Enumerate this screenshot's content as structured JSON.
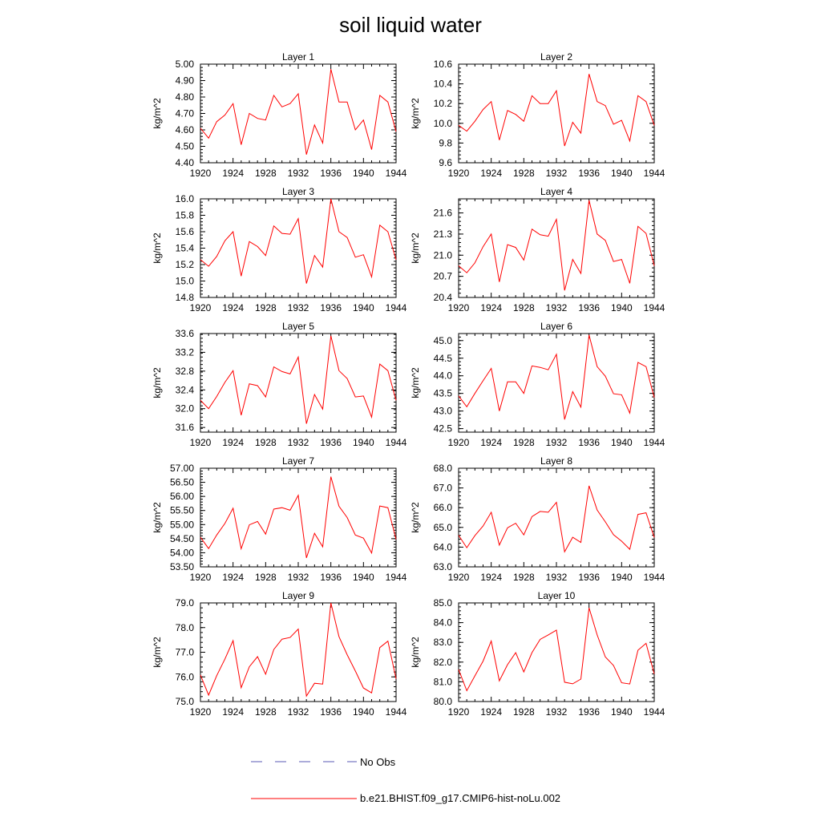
{
  "figure": {
    "title": "soil liquid water",
    "legend": [
      {
        "label": "No Obs",
        "color": "#5a5ab4",
        "style": "dashed"
      },
      {
        "label": "b.e21.BHIST.f09_g17.CMIP6-hist-noLu.002",
        "color": "#ff0000",
        "style": "solid"
      }
    ]
  },
  "chart_data": [
    {
      "type": "line",
      "title": "Layer 1",
      "ylabel": "kg/m^2",
      "x": [
        1920,
        1921,
        1922,
        1923,
        1924,
        1925,
        1926,
        1927,
        1928,
        1929,
        1930,
        1931,
        1932,
        1933,
        1934,
        1935,
        1936,
        1937,
        1938,
        1939,
        1940,
        1941,
        1942,
        1943,
        1944
      ],
      "xticks": [
        "1920",
        "1924",
        "1928",
        "1932",
        "1936",
        "1940",
        "1944"
      ],
      "ylim": [
        4.4,
        5.0
      ],
      "yticks": [
        "4.40",
        "4.50",
        "4.60",
        "4.70",
        "4.80",
        "4.90",
        "5.00"
      ],
      "series": [
        {
          "name": "b.e21.BHIST.f09_g17.CMIP6-hist-noLu.002",
          "color": "#ff0000",
          "values": [
            4.61,
            4.55,
            4.65,
            4.69,
            4.76,
            4.51,
            4.7,
            4.67,
            4.66,
            4.81,
            4.74,
            4.76,
            4.82,
            4.45,
            4.63,
            4.52,
            4.97,
            4.77,
            4.77,
            4.6,
            4.66,
            4.48,
            4.81,
            4.77,
            4.59
          ]
        }
      ]
    },
    {
      "type": "line",
      "title": "Layer 2",
      "ylabel": "kg/m^2",
      "x": [
        1920,
        1921,
        1922,
        1923,
        1924,
        1925,
        1926,
        1927,
        1928,
        1929,
        1930,
        1931,
        1932,
        1933,
        1934,
        1935,
        1936,
        1937,
        1938,
        1939,
        1940,
        1941,
        1942,
        1943,
        1944
      ],
      "xticks": [
        "1920",
        "1924",
        "1928",
        "1932",
        "1936",
        "1940",
        "1944"
      ],
      "ylim": [
        9.6,
        10.6
      ],
      "yticks": [
        "9.6",
        "9.8",
        "10.0",
        "10.2",
        "10.4",
        "10.6"
      ],
      "series": [
        {
          "name": "b.e21.BHIST.f09_g17.CMIP6-hist-noLu.002",
          "color": "#ff0000",
          "values": [
            9.98,
            9.92,
            10.02,
            10.14,
            10.22,
            9.83,
            10.13,
            10.09,
            10.02,
            10.28,
            10.2,
            10.2,
            10.33,
            9.77,
            10.01,
            9.9,
            10.5,
            10.22,
            10.18,
            9.99,
            10.03,
            9.82,
            10.28,
            10.22,
            9.98
          ]
        }
      ]
    },
    {
      "type": "line",
      "title": "Layer 3",
      "ylabel": "kg/m^2",
      "x": [
        1920,
        1921,
        1922,
        1923,
        1924,
        1925,
        1926,
        1927,
        1928,
        1929,
        1930,
        1931,
        1932,
        1933,
        1934,
        1935,
        1936,
        1937,
        1938,
        1939,
        1940,
        1941,
        1942,
        1943,
        1944
      ],
      "xticks": [
        "1920",
        "1924",
        "1928",
        "1932",
        "1936",
        "1940",
        "1944"
      ],
      "ylim": [
        14.8,
        16.0
      ],
      "yticks": [
        "14.8",
        "15.0",
        "15.2",
        "15.4",
        "15.6",
        "15.8",
        "16.0"
      ],
      "series": [
        {
          "name": "b.e21.BHIST.f09_g17.CMIP6-hist-noLu.002",
          "color": "#ff0000",
          "values": [
            15.26,
            15.18,
            15.3,
            15.49,
            15.6,
            15.06,
            15.48,
            15.42,
            15.31,
            15.67,
            15.58,
            15.57,
            15.76,
            14.97,
            15.31,
            15.17,
            16.0,
            15.6,
            15.53,
            15.29,
            15.32,
            15.05,
            15.68,
            15.6,
            15.26
          ]
        }
      ]
    },
    {
      "type": "line",
      "title": "Layer 4",
      "ylabel": "kg/m^2",
      "x": [
        1920,
        1921,
        1922,
        1923,
        1924,
        1925,
        1926,
        1927,
        1928,
        1929,
        1930,
        1931,
        1932,
        1933,
        1934,
        1935,
        1936,
        1937,
        1938,
        1939,
        1940,
        1941,
        1942,
        1943,
        1944
      ],
      "xticks": [
        "1920",
        "1924",
        "1928",
        "1932",
        "1936",
        "1940",
        "1944"
      ],
      "ylim": [
        20.4,
        21.8
      ],
      "yticks": [
        "20.4",
        "20.7",
        "21.0",
        "21.3",
        "21.6"
      ],
      "series": [
        {
          "name": "b.e21.BHIST.f09_g17.CMIP6-hist-noLu.002",
          "color": "#ff0000",
          "values": [
            20.85,
            20.75,
            20.89,
            21.12,
            21.3,
            20.62,
            21.15,
            21.11,
            20.93,
            21.37,
            21.29,
            21.27,
            21.51,
            20.5,
            20.94,
            20.74,
            21.78,
            21.3,
            21.21,
            20.91,
            20.94,
            20.6,
            21.41,
            21.31,
            20.85
          ]
        }
      ]
    },
    {
      "type": "line",
      "title": "Layer 5",
      "ylabel": "kg/m^2",
      "x": [
        1920,
        1921,
        1922,
        1923,
        1924,
        1925,
        1926,
        1927,
        1928,
        1929,
        1930,
        1931,
        1932,
        1933,
        1934,
        1935,
        1936,
        1937,
        1938,
        1939,
        1940,
        1941,
        1942,
        1943,
        1944
      ],
      "xticks": [
        "1920",
        "1924",
        "1928",
        "1932",
        "1936",
        "1940",
        "1944"
      ],
      "ylim": [
        31.5,
        33.6
      ],
      "yticks": [
        "31.6",
        "32.0",
        "32.4",
        "32.8",
        "33.2",
        "33.6"
      ],
      "series": [
        {
          "name": "b.e21.BHIST.f09_g17.CMIP6-hist-noLu.002",
          "color": "#ff0000",
          "values": [
            32.18,
            32.0,
            32.26,
            32.56,
            32.81,
            31.86,
            32.53,
            32.49,
            32.25,
            32.89,
            32.79,
            32.74,
            33.1,
            31.68,
            32.3,
            31.99,
            33.55,
            32.81,
            32.64,
            32.25,
            32.27,
            31.82,
            32.95,
            32.81,
            32.18
          ]
        }
      ]
    },
    {
      "type": "line",
      "title": "Layer 6",
      "ylabel": "kg/m^2",
      "x": [
        1920,
        1921,
        1922,
        1923,
        1924,
        1925,
        1926,
        1927,
        1928,
        1929,
        1930,
        1931,
        1932,
        1933,
        1934,
        1935,
        1936,
        1937,
        1938,
        1939,
        1940,
        1941,
        1942,
        1943,
        1944
      ],
      "xticks": [
        "1920",
        "1924",
        "1928",
        "1932",
        "1936",
        "1940",
        "1944"
      ],
      "ylim": [
        42.4,
        45.2
      ],
      "yticks": [
        "42.5",
        "43.0",
        "43.5",
        "44.0",
        "44.5",
        "45.0"
      ],
      "series": [
        {
          "name": "b.e21.BHIST.f09_g17.CMIP6-hist-noLu.002",
          "color": "#ff0000",
          "values": [
            43.43,
            43.12,
            43.5,
            43.86,
            44.21,
            43.0,
            43.83,
            43.83,
            43.5,
            44.28,
            44.24,
            44.17,
            44.61,
            42.76,
            43.55,
            43.11,
            45.16,
            44.26,
            43.99,
            43.49,
            43.46,
            42.94,
            44.38,
            44.26,
            43.38
          ]
        }
      ]
    },
    {
      "type": "line",
      "title": "Layer 7",
      "ylabel": "kg/m^2",
      "x": [
        1920,
        1921,
        1922,
        1923,
        1924,
        1925,
        1926,
        1927,
        1928,
        1929,
        1930,
        1931,
        1932,
        1933,
        1934,
        1935,
        1936,
        1937,
        1938,
        1939,
        1940,
        1941,
        1942,
        1943,
        1944
      ],
      "xticks": [
        "1920",
        "1924",
        "1928",
        "1932",
        "1936",
        "1940",
        "1944"
      ],
      "ylim": [
        53.5,
        57.0
      ],
      "yticks": [
        "53.50",
        "54.00",
        "54.50",
        "55.00",
        "55.50",
        "56.00",
        "56.50",
        "57.00"
      ],
      "series": [
        {
          "name": "b.e21.BHIST.f09_g17.CMIP6-hist-noLu.002",
          "color": "#ff0000",
          "values": [
            54.55,
            54.15,
            54.63,
            55.04,
            55.58,
            54.14,
            54.99,
            55.11,
            54.66,
            55.55,
            55.6,
            55.51,
            56.04,
            53.82,
            54.69,
            54.21,
            56.7,
            55.65,
            55.25,
            54.63,
            54.52,
            53.99,
            55.66,
            55.6,
            54.48
          ]
        }
      ]
    },
    {
      "type": "line",
      "title": "Layer 8",
      "ylabel": "kg/m^2",
      "x": [
        1920,
        1921,
        1922,
        1923,
        1924,
        1925,
        1926,
        1927,
        1928,
        1929,
        1930,
        1931,
        1932,
        1933,
        1934,
        1935,
        1936,
        1937,
        1938,
        1939,
        1940,
        1941,
        1942,
        1943,
        1944
      ],
      "xticks": [
        "1920",
        "1924",
        "1928",
        "1932",
        "1936",
        "1940",
        "1944"
      ],
      "ylim": [
        63.0,
        68.0
      ],
      "yticks": [
        "63.0",
        "64.0",
        "65.0",
        "66.0",
        "67.0",
        "68.0"
      ],
      "series": [
        {
          "name": "b.e21.BHIST.f09_g17.CMIP6-hist-noLu.002",
          "color": "#ff0000",
          "values": [
            64.6,
            63.97,
            64.58,
            65.07,
            65.77,
            64.1,
            64.98,
            65.21,
            64.62,
            65.55,
            65.81,
            65.77,
            66.27,
            63.76,
            64.5,
            64.24,
            67.11,
            65.88,
            65.28,
            64.63,
            64.3,
            63.89,
            65.66,
            65.74,
            64.49
          ]
        }
      ]
    },
    {
      "type": "line",
      "title": "Layer 9",
      "ylabel": "kg/m^2",
      "x": [
        1920,
        1921,
        1922,
        1923,
        1924,
        1925,
        1926,
        1927,
        1928,
        1929,
        1930,
        1931,
        1932,
        1933,
        1934,
        1935,
        1936,
        1937,
        1938,
        1939,
        1940,
        1941,
        1942,
        1943,
        1944
      ],
      "xticks": [
        "1920",
        "1924",
        "1928",
        "1932",
        "1936",
        "1940",
        "1944"
      ],
      "ylim": [
        75.0,
        79.0
      ],
      "yticks": [
        "75.0",
        "76.0",
        "77.0",
        "78.0",
        "79.0"
      ],
      "series": [
        {
          "name": "b.e21.BHIST.f09_g17.CMIP6-hist-noLu.002",
          "color": "#ff0000",
          "values": [
            76.08,
            75.26,
            76.05,
            76.72,
            77.47,
            75.56,
            76.41,
            76.82,
            76.11,
            77.11,
            77.53,
            77.6,
            77.94,
            75.22,
            75.74,
            75.71,
            79.0,
            77.63,
            76.9,
            76.24,
            75.55,
            75.35,
            77.19,
            77.45,
            75.92
          ]
        }
      ]
    },
    {
      "type": "line",
      "title": "Layer 10",
      "ylabel": "kg/m^2",
      "x": [
        1920,
        1921,
        1922,
        1923,
        1924,
        1925,
        1926,
        1927,
        1928,
        1929,
        1930,
        1931,
        1932,
        1933,
        1934,
        1935,
        1936,
        1937,
        1938,
        1939,
        1940,
        1941,
        1942,
        1943,
        1944
      ],
      "xticks": [
        "1920",
        "1924",
        "1928",
        "1932",
        "1936",
        "1940",
        "1944"
      ],
      "ylim": [
        80.0,
        85.0
      ],
      "yticks": [
        "80.0",
        "81.0",
        "82.0",
        "83.0",
        "84.0",
        "85.0"
      ],
      "series": [
        {
          "name": "b.e21.BHIST.f09_g17.CMIP6-hist-noLu.002",
          "color": "#ff0000",
          "values": [
            81.62,
            80.55,
            81.3,
            82.05,
            83.07,
            81.05,
            81.87,
            82.48,
            81.5,
            82.48,
            83.15,
            83.38,
            83.62,
            80.98,
            80.9,
            81.14,
            84.75,
            83.38,
            82.26,
            81.83,
            80.95,
            80.89,
            82.6,
            82.95,
            81.4
          ]
        }
      ]
    }
  ]
}
